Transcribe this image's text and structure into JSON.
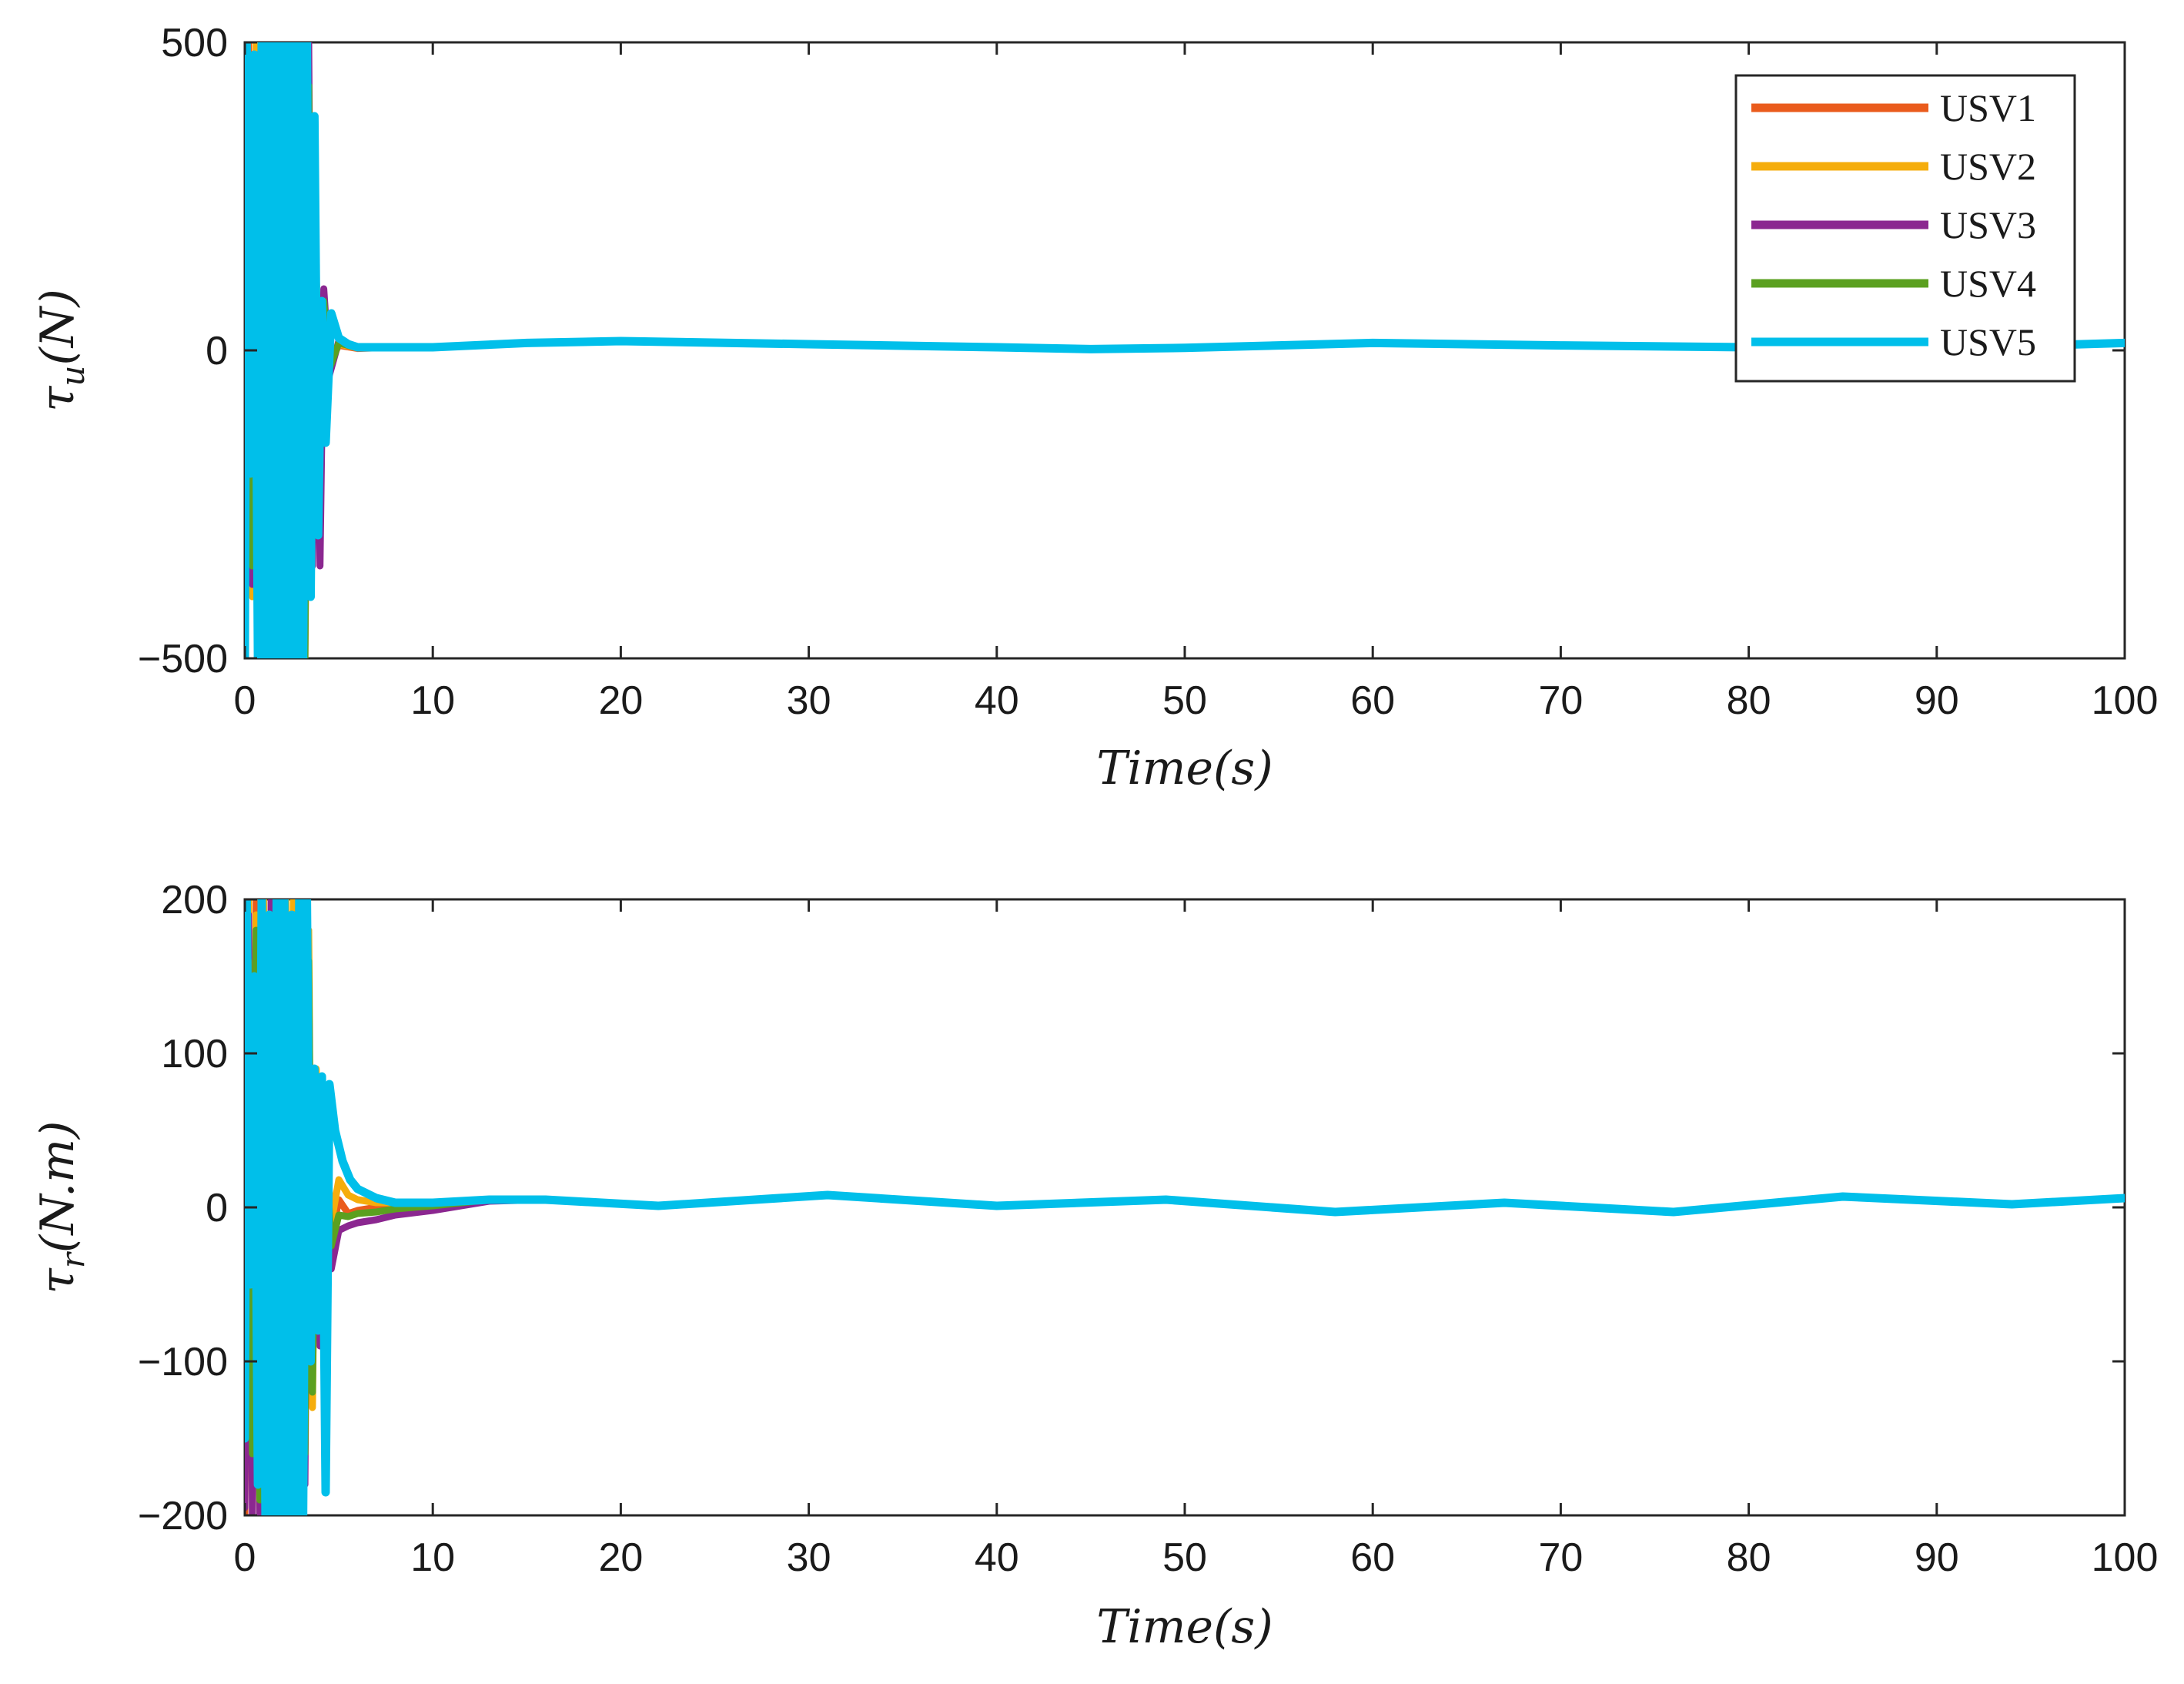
{
  "chart_data": [
    {
      "type": "line",
      "title": "",
      "xlabel": "Time(s)",
      "ylabel": {
        "symbol": "τ",
        "sub": "u",
        "unit": "(N)"
      },
      "xlim": [
        0,
        100
      ],
      "ylim": [
        -500,
        500
      ],
      "xticks": [
        0,
        10,
        20,
        30,
        40,
        50,
        60,
        70,
        80,
        90,
        100
      ],
      "yticks": [
        -500,
        0,
        500
      ],
      "ytick_labels": [
        "−500",
        "0",
        "500"
      ],
      "grid": false,
      "legend": {
        "placement": "top-right",
        "entries": [
          "USV1",
          "USV2",
          "USV3",
          "USV4",
          "USV5"
        ]
      },
      "series": [
        {
          "name": "USV1",
          "color": "#EA5B1C",
          "x": [
            0,
            0.2,
            0.4,
            0.6,
            0.8,
            1.0,
            1.2,
            1.4,
            1.6,
            1.8,
            2.0,
            2.2,
            2.4,
            2.6,
            2.8,
            3.0,
            3.2,
            3.4,
            3.6,
            3.8,
            4.0,
            4.2,
            4.5,
            5,
            6,
            8,
            10,
            15,
            20,
            30,
            40,
            45,
            50,
            60,
            70,
            80,
            90,
            100
          ],
          "y": [
            -500,
            500,
            -300,
            400,
            -500,
            450,
            -500,
            500,
            -400,
            500,
            -500,
            480,
            -500,
            500,
            -450,
            300,
            -500,
            200,
            -100,
            100,
            -60,
            40,
            -20,
            8,
            3,
            5,
            5,
            12,
            15,
            10,
            5,
            2,
            4,
            12,
            8,
            5,
            3,
            12
          ]
        },
        {
          "name": "USV2",
          "color": "#F5AD0C",
          "x": [
            0,
            0.2,
            0.4,
            0.6,
            0.8,
            1.0,
            1.2,
            1.4,
            1.6,
            1.8,
            2.0,
            2.2,
            2.4,
            2.6,
            2.8,
            3.0,
            3.2,
            3.4,
            3.6,
            3.8,
            4.0,
            4.2,
            4.5,
            5,
            6,
            8,
            10,
            15,
            20,
            30,
            40,
            45,
            50,
            60,
            70,
            80,
            90,
            100
          ],
          "y": [
            -480,
            480,
            -400,
            500,
            -480,
            500,
            -450,
            480,
            -500,
            450,
            -480,
            500,
            -420,
            480,
            -500,
            350,
            -400,
            250,
            -150,
            120,
            -80,
            50,
            -25,
            10,
            4,
            5,
            5,
            12,
            15,
            10,
            5,
            2,
            4,
            12,
            8,
            5,
            3,
            12
          ]
        },
        {
          "name": "USV3",
          "color": "#8B2790",
          "x": [
            0,
            0.2,
            0.4,
            0.6,
            0.8,
            1.0,
            1.2,
            1.4,
            1.6,
            1.8,
            2.0,
            2.2,
            2.4,
            2.6,
            2.8,
            3.0,
            3.2,
            3.4,
            3.6,
            3.8,
            4.0,
            4.2,
            4.5,
            5,
            6,
            8,
            10,
            15,
            20,
            30,
            40,
            45,
            50,
            60,
            70,
            80,
            90,
            100
          ],
          "y": [
            -490,
            450,
            -380,
            480,
            -500,
            420,
            -480,
            500,
            -460,
            490,
            -500,
            470,
            -500,
            480,
            -480,
            500,
            -450,
            500,
            -350,
            120,
            -350,
            100,
            -40,
            15,
            5,
            5,
            5,
            12,
            15,
            10,
            5,
            2,
            4,
            12,
            8,
            5,
            3,
            12
          ]
        },
        {
          "name": "USV4",
          "color": "#5BA020",
          "x": [
            0,
            0.2,
            0.4,
            0.6,
            0.8,
            1.0,
            1.2,
            1.4,
            1.6,
            1.8,
            2.0,
            2.2,
            2.4,
            2.6,
            2.8,
            3.0,
            3.2,
            3.4,
            3.6,
            3.8,
            4.0,
            4.2,
            4.5,
            5,
            6,
            8,
            10,
            15,
            20,
            30,
            40,
            45,
            50,
            60,
            70,
            80,
            90,
            100
          ],
          "y": [
            -470,
            470,
            -350,
            460,
            -490,
            480,
            -470,
            490,
            -480,
            470,
            -490,
            460,
            -480,
            470,
            -490,
            440,
            -500,
            430,
            -300,
            100,
            -120,
            80,
            -30,
            12,
            4,
            5,
            5,
            12,
            15,
            10,
            5,
            2,
            4,
            12,
            8,
            5,
            3,
            12
          ]
        },
        {
          "name": "USV5",
          "color": "#00BFEA",
          "x": [
            0,
            0.1,
            0.3,
            0.5,
            0.7,
            0.9,
            1.1,
            1.3,
            1.5,
            1.7,
            1.9,
            2.1,
            2.3,
            2.5,
            2.7,
            2.9,
            3.1,
            3.3,
            3.5,
            3.7,
            3.9,
            4.1,
            4.3,
            4.6,
            5,
            5.5,
            6,
            8,
            10,
            15,
            20,
            30,
            40,
            45,
            50,
            60,
            70,
            80,
            90,
            100
          ],
          "y": [
            -500,
            500,
            -200,
            480,
            -500,
            500,
            -500,
            500,
            -500,
            500,
            -500,
            500,
            -500,
            500,
            -500,
            500,
            -500,
            500,
            -400,
            380,
            -300,
            80,
            -150,
            60,
            20,
            10,
            5,
            5,
            5,
            12,
            15,
            10,
            5,
            2,
            4,
            12,
            8,
            5,
            3,
            12
          ]
        }
      ]
    },
    {
      "type": "line",
      "title": "",
      "xlabel": "Time(s)",
      "ylabel": {
        "symbol": "τ",
        "sub": "r",
        "unit": "(N.m)"
      },
      "xlim": [
        0,
        100
      ],
      "ylim": [
        -200,
        200
      ],
      "xticks": [
        0,
        10,
        20,
        30,
        40,
        50,
        60,
        70,
        80,
        90,
        100
      ],
      "yticks": [
        -200,
        -100,
        0,
        100,
        200
      ],
      "ytick_labels": [
        "−200",
        "−100",
        "0",
        "100",
        "200"
      ],
      "grid": false,
      "series": [
        {
          "name": "USV1",
          "color": "#EA5B1C",
          "x": [
            0,
            0.2,
            0.4,
            0.6,
            0.8,
            1.0,
            1.2,
            1.4,
            1.6,
            1.8,
            2.0,
            2.2,
            2.4,
            2.6,
            2.8,
            3.0,
            3.2,
            3.4,
            3.6,
            3.8,
            4.0,
            4.3,
            4.6,
            5,
            5.5,
            6,
            7,
            8,
            10,
            13,
            16,
            22,
            31,
            40,
            49,
            58,
            67,
            76,
            85,
            94,
            100
          ],
          "y": [
            -200,
            180,
            -150,
            200,
            -200,
            150,
            -200,
            200,
            -180,
            200,
            -200,
            160,
            -200,
            200,
            -150,
            200,
            -120,
            120,
            -100,
            80,
            -60,
            40,
            -20,
            5,
            -4,
            -2,
            0,
            2,
            3,
            5,
            5,
            1,
            8,
            1,
            5,
            -3,
            3,
            -3,
            7,
            2,
            6
          ]
        },
        {
          "name": "USV2",
          "color": "#F5AD0C",
          "x": [
            0,
            0.2,
            0.4,
            0.6,
            0.8,
            1.0,
            1.2,
            1.4,
            1.6,
            1.8,
            2.0,
            2.2,
            2.4,
            2.6,
            2.8,
            3.0,
            3.2,
            3.4,
            3.6,
            3.8,
            4.0,
            4.3,
            4.6,
            5,
            5.5,
            6,
            7,
            8,
            10,
            13,
            16,
            22,
            31,
            40,
            49,
            58,
            67,
            76,
            85,
            94,
            100
          ],
          "y": [
            -180,
            200,
            -170,
            190,
            -200,
            200,
            -180,
            200,
            -200,
            190,
            -190,
            200,
            -170,
            200,
            -190,
            200,
            -150,
            180,
            -130,
            90,
            -70,
            50,
            -10,
            18,
            8,
            5,
            3,
            3,
            3,
            5,
            5,
            1,
            8,
            1,
            5,
            -3,
            3,
            -3,
            7,
            2,
            6
          ]
        },
        {
          "name": "USV3",
          "color": "#8B2790",
          "x": [
            0,
            0.2,
            0.4,
            0.6,
            0.8,
            1.0,
            1.2,
            1.4,
            1.6,
            1.8,
            2.0,
            2.2,
            2.4,
            2.6,
            2.8,
            3.0,
            3.2,
            3.4,
            3.6,
            3.8,
            4.0,
            4.3,
            4.6,
            5,
            5.5,
            6,
            7,
            8,
            10,
            13,
            16,
            22,
            31,
            40,
            49,
            58,
            67,
            76,
            85,
            94,
            100
          ],
          "y": [
            -195,
            190,
            -200,
            150,
            -200,
            180,
            -190,
            200,
            -200,
            170,
            -200,
            190,
            -200,
            180,
            -200,
            190,
            -180,
            150,
            -110,
            70,
            -90,
            30,
            -40,
            -15,
            -12,
            -10,
            -8,
            -5,
            -2,
            4,
            5,
            1,
            8,
            1,
            5,
            -3,
            3,
            -3,
            7,
            2,
            6
          ]
        },
        {
          "name": "USV4",
          "color": "#5BA020",
          "x": [
            0,
            0.2,
            0.4,
            0.6,
            0.8,
            1.0,
            1.2,
            1.4,
            1.6,
            1.8,
            2.0,
            2.2,
            2.4,
            2.6,
            2.8,
            3.0,
            3.2,
            3.4,
            3.6,
            3.8,
            4.0,
            4.3,
            4.6,
            5,
            5.5,
            6,
            7,
            8,
            10,
            13,
            16,
            22,
            31,
            40,
            49,
            58,
            67,
            76,
            85,
            94,
            100
          ],
          "y": [
            -130,
            160,
            -160,
            180,
            -190,
            170,
            -170,
            190,
            -190,
            180,
            -180,
            190,
            -160,
            190,
            -180,
            200,
            -160,
            160,
            -120,
            80,
            -80,
            40,
            -25,
            -5,
            -6,
            -4,
            -3,
            -1,
            1,
            5,
            5,
            1,
            8,
            1,
            5,
            -3,
            3,
            -3,
            7,
            2,
            6
          ]
        },
        {
          "name": "USV5",
          "color": "#00BFEA",
          "x": [
            0,
            0.1,
            0.3,
            0.5,
            0.7,
            0.9,
            1.1,
            1.3,
            1.5,
            1.7,
            1.9,
            2.1,
            2.3,
            2.5,
            2.7,
            2.9,
            3.1,
            3.3,
            3.5,
            3.7,
            3.9,
            4.1,
            4.3,
            4.5,
            4.8,
            5.2,
            5.6,
            6,
            7,
            8,
            10,
            13,
            16,
            22,
            31,
            40,
            49,
            58,
            67,
            76,
            85,
            94,
            100
          ],
          "y": [
            -150,
            200,
            -50,
            150,
            -180,
            200,
            -200,
            190,
            -200,
            200,
            -200,
            200,
            -200,
            190,
            -200,
            200,
            -200,
            200,
            -100,
            90,
            -80,
            85,
            -185,
            80,
            50,
            30,
            18,
            12,
            6,
            3,
            3,
            5,
            5,
            1,
            8,
            1,
            5,
            -3,
            3,
            -3,
            7,
            2,
            6
          ]
        }
      ]
    }
  ]
}
